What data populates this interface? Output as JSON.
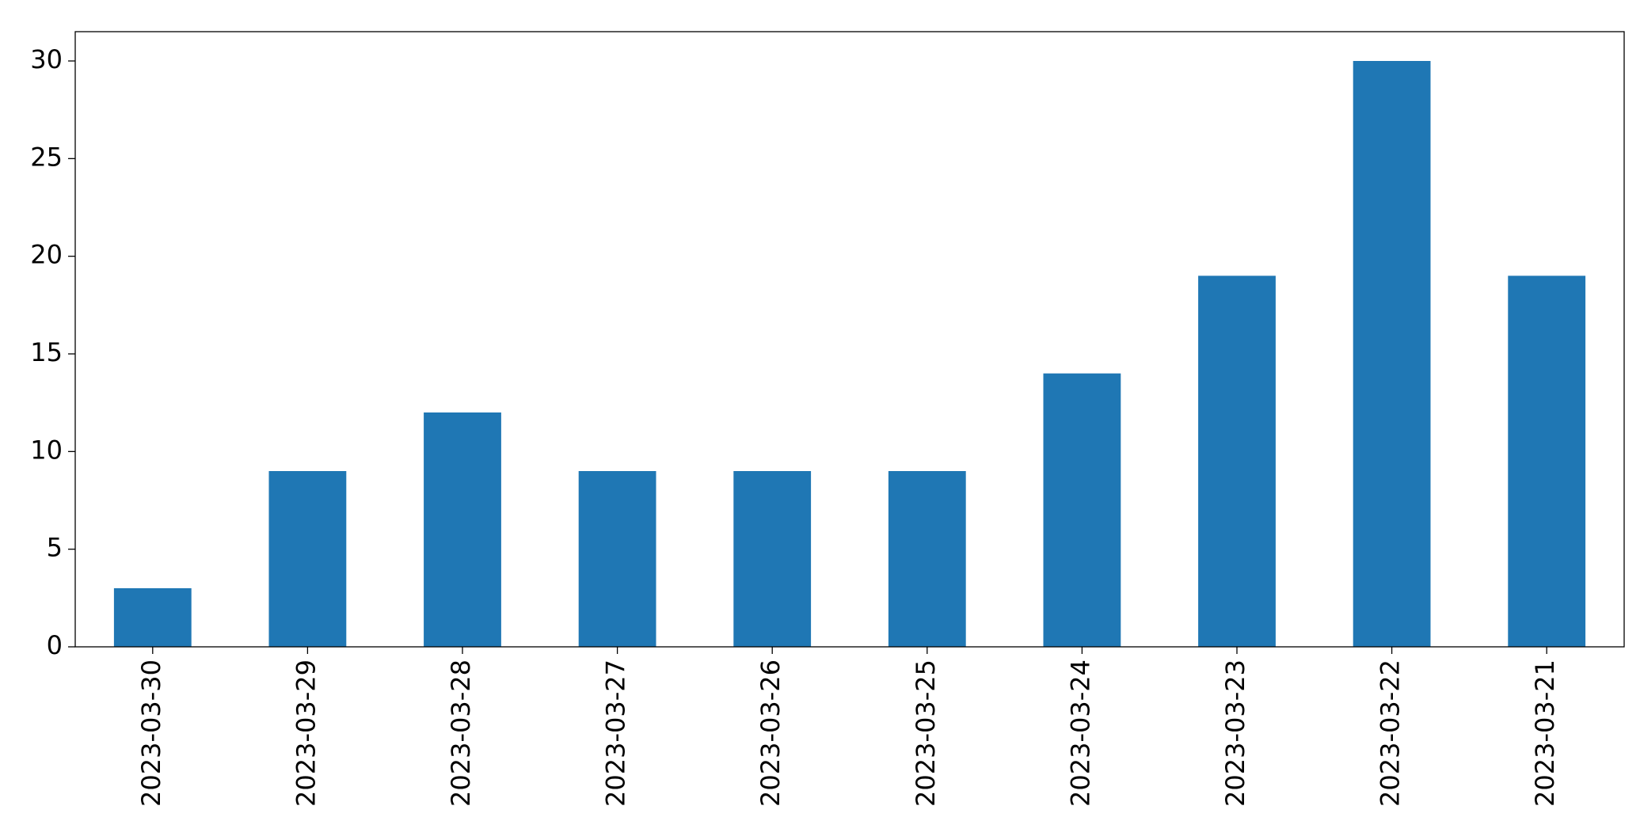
{
  "chart_data": {
    "type": "bar",
    "categories": [
      "2023-03-30",
      "2023-03-29",
      "2023-03-28",
      "2023-03-27",
      "2023-03-26",
      "2023-03-25",
      "2023-03-24",
      "2023-03-23",
      "2023-03-22",
      "2023-03-21"
    ],
    "values": [
      3,
      9,
      12,
      9,
      9,
      9,
      14,
      19,
      30,
      19
    ],
    "color": "#1f77b4",
    "ylim": [
      0,
      31.5
    ],
    "yticks": [
      0,
      5,
      10,
      15,
      20,
      25,
      30
    ],
    "grid": false
  }
}
